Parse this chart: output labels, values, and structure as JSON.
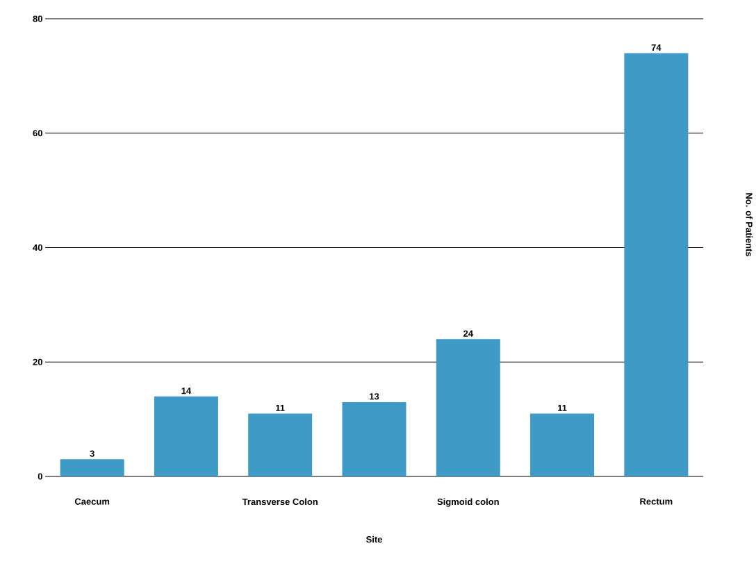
{
  "chart_data": {
    "type": "bar",
    "xlabel": "Site",
    "ylabel": "No. of Patients",
    "categories": [
      "Caecum",
      null,
      "Transverse Colon",
      null,
      "Sigmoid colon",
      null,
      "Rectum"
    ],
    "values": [
      3,
      14,
      11,
      13,
      24,
      11,
      74
    ],
    "color": "#3f9bc6",
    "ylim": [
      0,
      80
    ],
    "yticks": [
      0,
      20,
      40,
      60,
      80
    ],
    "grid": "y",
    "data_labels": true
  }
}
